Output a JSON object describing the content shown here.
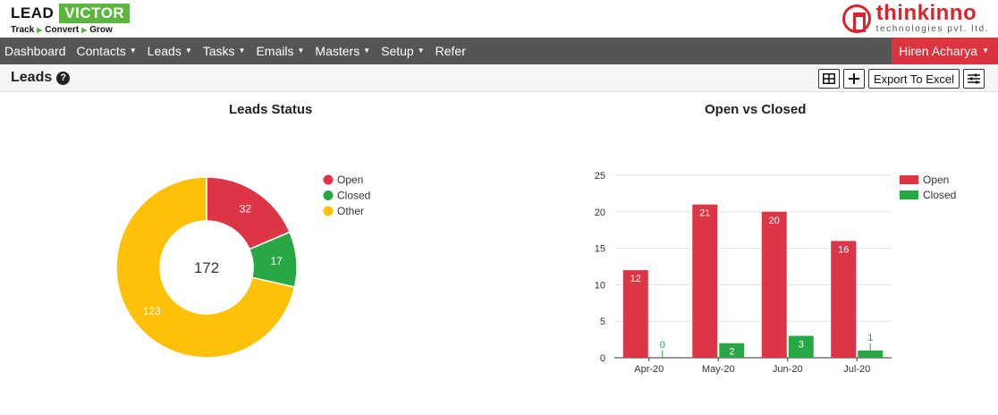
{
  "logo": {
    "lead": "LEAD",
    "victor": "VICTOR",
    "tagline": [
      "Track",
      "Convert",
      "Grow"
    ]
  },
  "brand": {
    "name": "thinkinno",
    "sub": "technologies pvt. ltd."
  },
  "nav": {
    "items": [
      "Dashboard",
      "Contacts",
      "Leads",
      "Tasks",
      "Emails",
      "Masters",
      "Setup",
      "Refer"
    ],
    "user": "Hiren Acharya"
  },
  "page": {
    "title": "Leads",
    "export_label": "Export To Excel"
  },
  "colors": {
    "open": "#dc3545",
    "closed": "#28a745",
    "other": "#ffc107",
    "nav": "#555555",
    "accent": "#d9343f",
    "brand_green": "#5cb53f"
  },
  "chart_data": [
    {
      "type": "pie",
      "title": "Leads Status",
      "center_label": "172",
      "categories": [
        "Open",
        "Closed",
        "Other"
      ],
      "values": [
        32,
        17,
        123
      ],
      "legend": "right"
    },
    {
      "type": "bar",
      "title": "Open vs Closed",
      "categories": [
        "Apr-20",
        "May-20",
        "Jun-20",
        "Jul-20"
      ],
      "series": [
        {
          "name": "Open",
          "values": [
            12,
            21,
            20,
            16
          ]
        },
        {
          "name": "Closed",
          "values": [
            0,
            2,
            3,
            1
          ]
        }
      ],
      "yticks": [
        0,
        5,
        10,
        15,
        20,
        25
      ],
      "ylim": [
        0,
        25
      ],
      "grid": true,
      "legend": "right"
    }
  ]
}
